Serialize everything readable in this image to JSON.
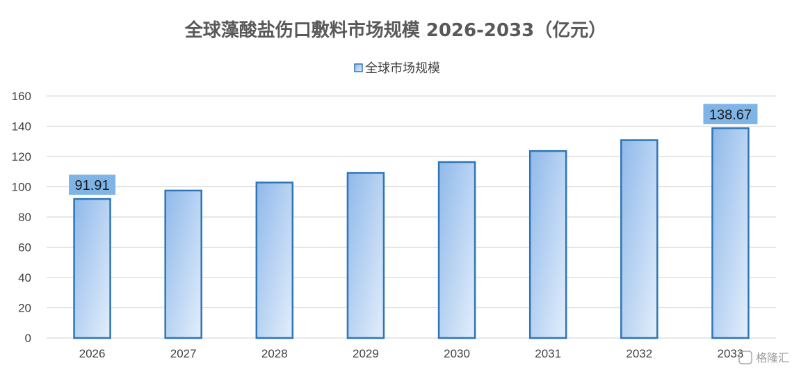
{
  "chart_data": {
    "type": "bar",
    "title": "全球藻酸盐伤口敷料市场规模 2026-2033（亿元）",
    "categories": [
      "2026",
      "2027",
      "2028",
      "2029",
      "2030",
      "2031",
      "2032",
      "2033"
    ],
    "series": [
      {
        "name": "全球市场规模",
        "values": [
          91.91,
          97.5,
          102.8,
          109.2,
          116.3,
          123.6,
          130.8,
          138.67
        ]
      }
    ],
    "data_labels": [
      {
        "category": "2026",
        "text": "91.91"
      },
      {
        "category": "2033",
        "text": "138.67"
      }
    ],
    "yticks": [
      "0",
      "20",
      "40",
      "60",
      "80",
      "100",
      "120",
      "140",
      "160"
    ],
    "ylim": [
      0,
      160
    ],
    "grid": true,
    "legend_position": "top-center",
    "colors": {
      "bar_gradient_start": "#8fb9ea",
      "bar_gradient_end": "#e3eefb",
      "bar_border": "#2e75b6",
      "label_fill": "#7fb4e6",
      "grid": "#d9d9d9"
    }
  },
  "watermark": "格隆汇"
}
